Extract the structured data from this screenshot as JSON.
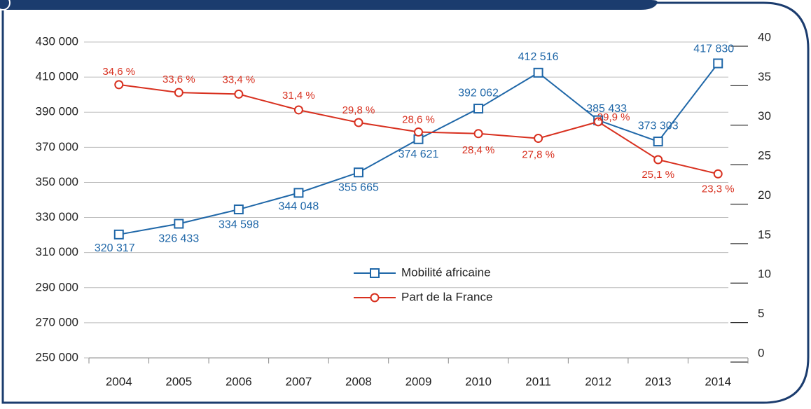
{
  "chart_data": {
    "type": "line",
    "categories": [
      "2004",
      "2005",
      "2006",
      "2007",
      "2008",
      "2009",
      "2010",
      "2011",
      "2012",
      "2013",
      "2014"
    ],
    "series": [
      {
        "name": "Mobilité africaine",
        "color": "#1f67a8",
        "marker": "square",
        "values": [
          320317,
          326433,
          334598,
          344048,
          355665,
          374621,
          392062,
          412516,
          385433,
          373303,
          417830
        ],
        "value_labels": [
          "320 317",
          "326 433",
          "334 598",
          "344 048",
          "355 665",
          "374 621",
          "392 062",
          "412 516",
          "385 433",
          "373 303",
          "417 830"
        ]
      },
      {
        "name": "Part de la France",
        "color": "#d8301f",
        "marker": "circle",
        "axis": "y2",
        "values": [
          34.6,
          33.6,
          33.4,
          31.4,
          29.8,
          28.6,
          28.4,
          27.8,
          29.9,
          25.1,
          23.3
        ],
        "value_labels": [
          "34,6 %",
          "33,6 %",
          "33,4 %",
          "31,4 %",
          "29,8 %",
          "28,6 %",
          "28,4 %",
          "27,8 %",
          "29,9 %",
          "25,1 %",
          "23,3 %"
        ]
      }
    ],
    "ylim": [
      250000,
      430000
    ],
    "yticks": [
      {
        "value": 250000,
        "label": "250 000"
      },
      {
        "value": 270000,
        "label": "270 000"
      },
      {
        "value": 290000,
        "label": "290 000"
      },
      {
        "value": 310000,
        "label": "310 000"
      },
      {
        "value": 330000,
        "label": "330 000"
      },
      {
        "value": 350000,
        "label": "350 000"
      },
      {
        "value": 370000,
        "label": "370 000"
      },
      {
        "value": 390000,
        "label": "390 000"
      },
      {
        "value": 410000,
        "label": "410 000"
      },
      {
        "value": 430000,
        "label": "430 000"
      }
    ],
    "y2lim": [
      0,
      40
    ],
    "y2ticks": [
      0,
      5,
      10,
      15,
      20,
      25,
      30,
      35,
      40
    ],
    "grid": true
  }
}
